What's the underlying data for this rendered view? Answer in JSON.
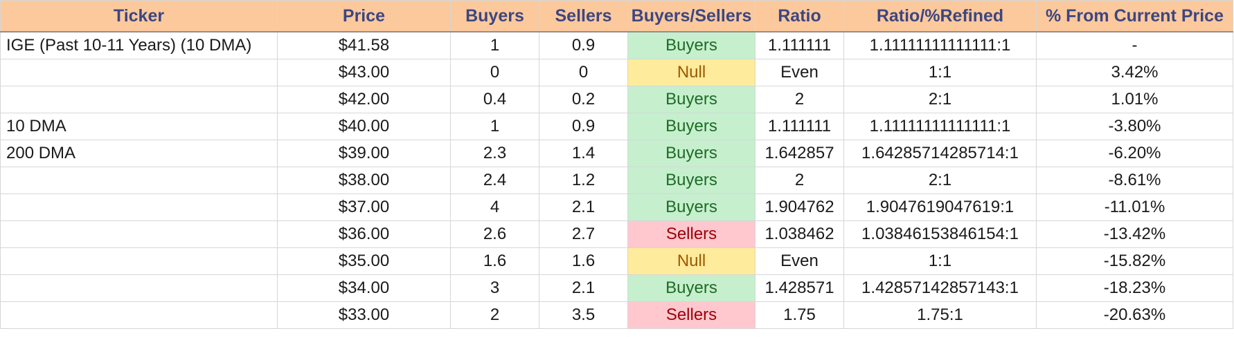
{
  "headers": [
    "Ticker",
    "Price",
    "Buyers",
    "Sellers",
    "Buyers/Sellers",
    "Ratio",
    "Ratio/%Refined",
    "% From Current Price"
  ],
  "rows": [
    {
      "ticker": "IGE (Past 10-11 Years) (10 DMA)",
      "price": "$41.58",
      "buyers": "1",
      "sellers": "0.9",
      "signal": "Buyers",
      "ratio": "1.111111",
      "refined": "1.11111111111111:1",
      "from_current": "-"
    },
    {
      "ticker": "",
      "price": "$43.00",
      "buyers": "0",
      "sellers": "0",
      "signal": "Null",
      "ratio": "Even",
      "refined": "1:1",
      "from_current": "3.42%"
    },
    {
      "ticker": "",
      "price": "$42.00",
      "buyers": "0.4",
      "sellers": "0.2",
      "signal": "Buyers",
      "ratio": "2",
      "refined": "2:1",
      "from_current": "1.01%"
    },
    {
      "ticker": "10 DMA",
      "price": "$40.00",
      "buyers": "1",
      "sellers": "0.9",
      "signal": "Buyers",
      "ratio": "1.111111",
      "refined": "1.11111111111111:1",
      "from_current": "-3.80%"
    },
    {
      "ticker": "200 DMA",
      "price": "$39.00",
      "buyers": "2.3",
      "sellers": "1.4",
      "signal": "Buyers",
      "ratio": "1.642857",
      "refined": "1.64285714285714:1",
      "from_current": "-6.20%"
    },
    {
      "ticker": "",
      "price": "$38.00",
      "buyers": "2.4",
      "sellers": "1.2",
      "signal": "Buyers",
      "ratio": "2",
      "refined": "2:1",
      "from_current": "-8.61%"
    },
    {
      "ticker": "",
      "price": "$37.00",
      "buyers": "4",
      "sellers": "2.1",
      "signal": "Buyers",
      "ratio": "1.904762",
      "refined": "1.9047619047619:1",
      "from_current": "-11.01%"
    },
    {
      "ticker": "",
      "price": "$36.00",
      "buyers": "2.6",
      "sellers": "2.7",
      "signal": "Sellers",
      "ratio": "1.038462",
      "refined": "1.03846153846154:1",
      "from_current": "-13.42%"
    },
    {
      "ticker": "",
      "price": "$35.00",
      "buyers": "1.6",
      "sellers": "1.6",
      "signal": "Null",
      "ratio": "Even",
      "refined": "1:1",
      "from_current": "-15.82%"
    },
    {
      "ticker": "",
      "price": "$34.00",
      "buyers": "3",
      "sellers": "2.1",
      "signal": "Buyers",
      "ratio": "1.428571",
      "refined": "1.42857142857143:1",
      "from_current": "-18.23%"
    },
    {
      "ticker": "",
      "price": "$33.00",
      "buyers": "2",
      "sellers": "3.5",
      "signal": "Sellers",
      "ratio": "1.75",
      "refined": "1.75:1",
      "from_current": "-20.63%"
    }
  ],
  "colors": {
    "header_bg": "#fcc99d",
    "header_text": "#3d4680",
    "buyers_bg": "#c6efce",
    "buyers_text": "#1e6b25",
    "sellers_bg": "#ffc7ce",
    "sellers_text": "#9c0006",
    "null_bg": "#ffeb9c",
    "null_text": "#9c5700"
  }
}
